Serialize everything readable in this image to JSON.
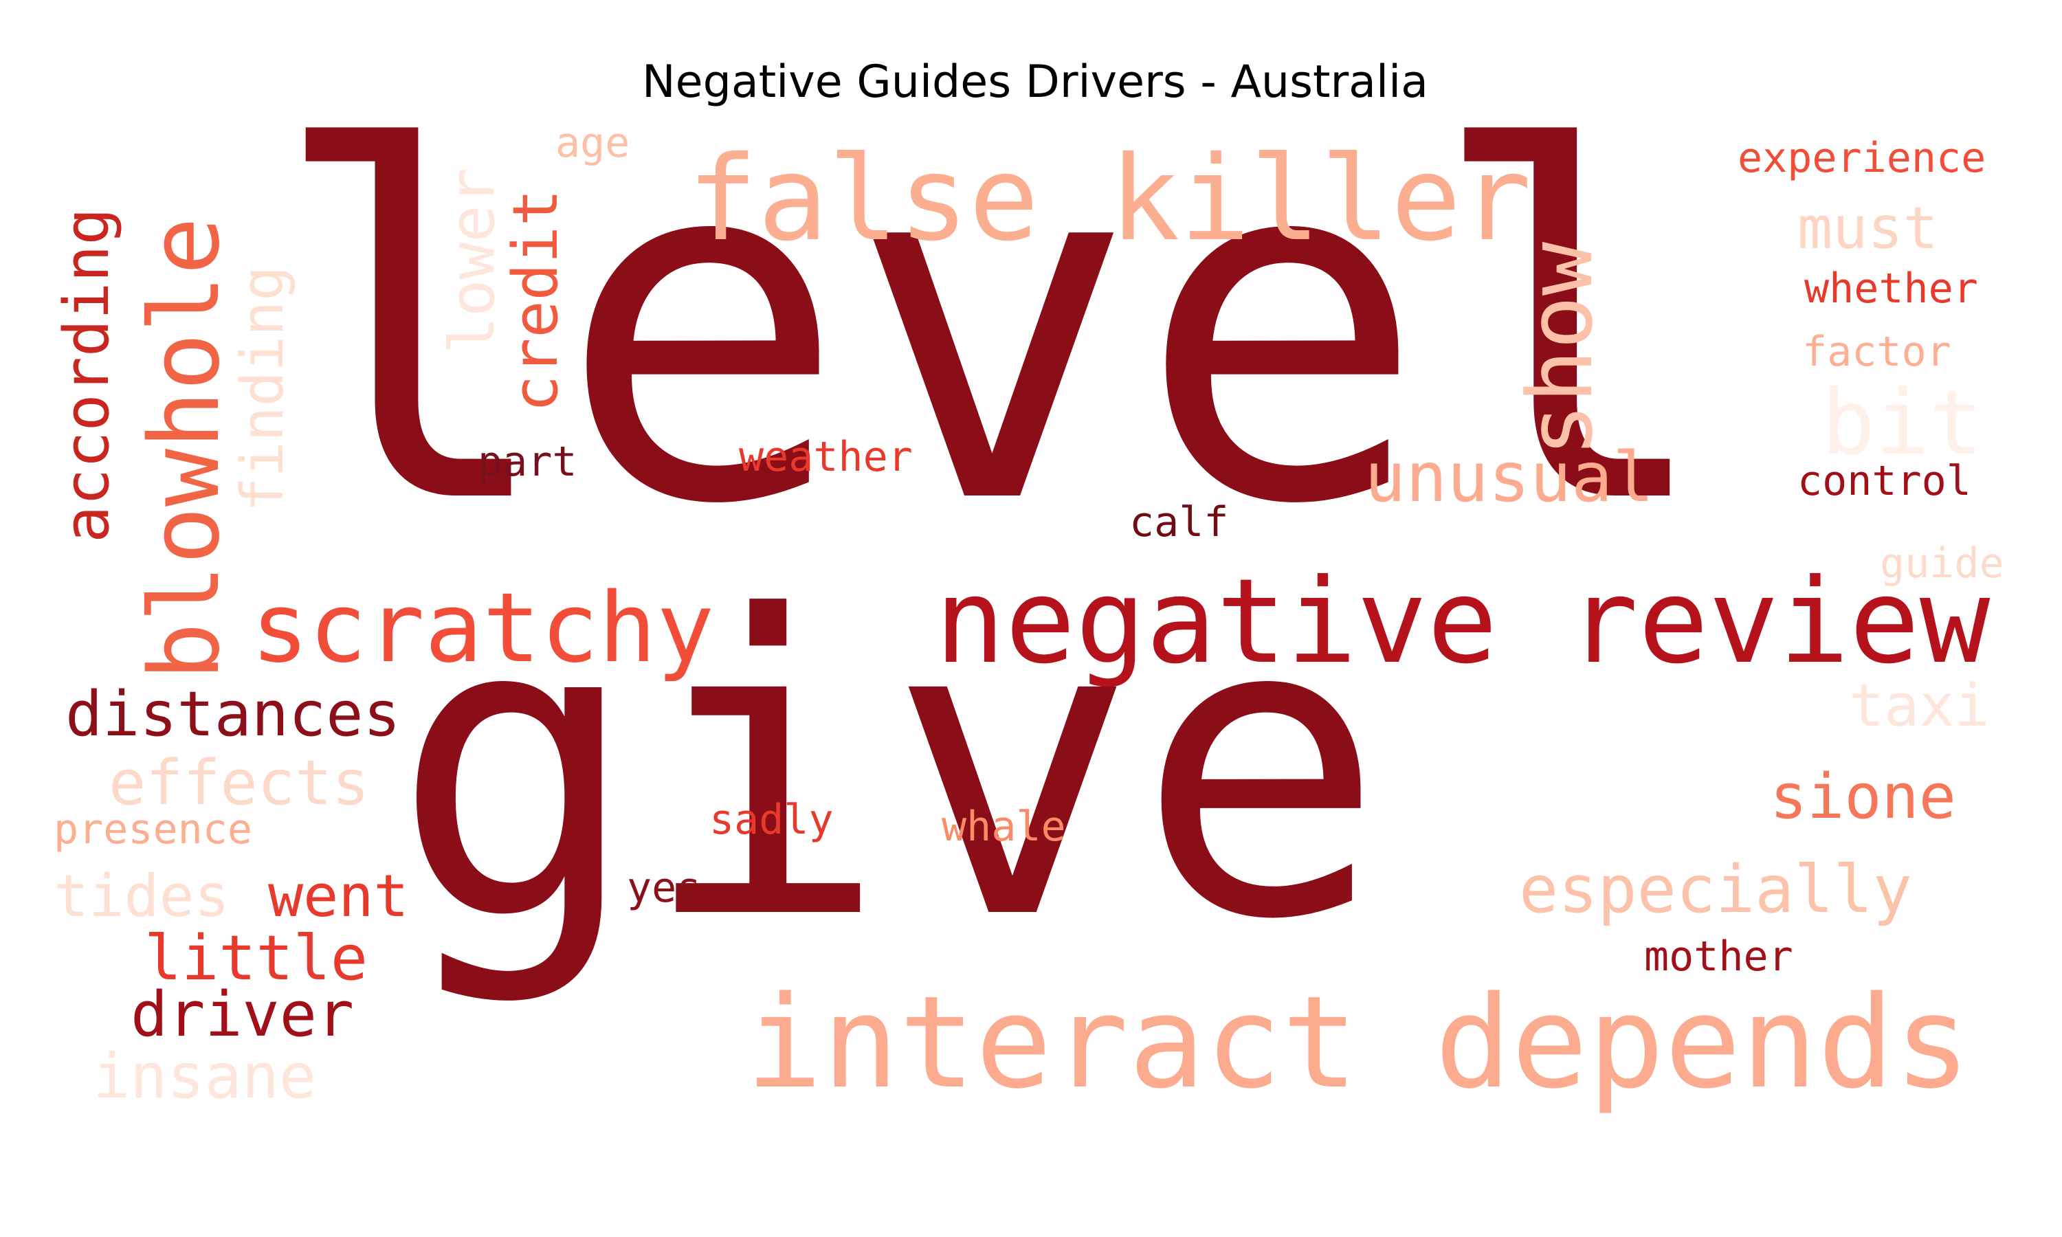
{
  "title": "Negative Guides Drivers - Australia",
  "colors": {
    "darkest": "#8b0d17",
    "dark": "#a50f15",
    "strong": "#cb181d",
    "mid": "#ef3b2c",
    "medium": "#fb6a4a",
    "light": "#fc9272",
    "lighter": "#fcae91",
    "pale": "#fcbba1",
    "palest": "#fee0d2",
    "maroon": "#67000d"
  },
  "words": [
    {
      "id": "level",
      "text": "level"
    },
    {
      "id": "give",
      "text": "give"
    },
    {
      "id": "negative-review",
      "text": "negative review"
    },
    {
      "id": "false-killer",
      "text": "false killer"
    },
    {
      "id": "interact-depends",
      "text": "interact depends"
    },
    {
      "id": "scratchy",
      "text": "scratchy"
    },
    {
      "id": "blowhole",
      "text": "blowhole"
    },
    {
      "id": "according",
      "text": "according"
    },
    {
      "id": "finding",
      "text": "finding"
    },
    {
      "id": "lower",
      "text": "lower"
    },
    {
      "id": "credit",
      "text": "credit"
    },
    {
      "id": "age",
      "text": "age"
    },
    {
      "id": "show",
      "text": "show"
    },
    {
      "id": "experience",
      "text": "experience"
    },
    {
      "id": "must",
      "text": "must"
    },
    {
      "id": "whether",
      "text": "whether"
    },
    {
      "id": "factor",
      "text": "factor"
    },
    {
      "id": "bit",
      "text": "bit"
    },
    {
      "id": "control",
      "text": "control"
    },
    {
      "id": "unusual",
      "text": "unusual"
    },
    {
      "id": "weather",
      "text": "weather"
    },
    {
      "id": "part",
      "text": "part"
    },
    {
      "id": "calf",
      "text": "calf"
    },
    {
      "id": "guide",
      "text": "guide"
    },
    {
      "id": "taxi",
      "text": "taxi"
    },
    {
      "id": "distances",
      "text": "distances"
    },
    {
      "id": "effects",
      "text": "effects"
    },
    {
      "id": "presence",
      "text": "presence"
    },
    {
      "id": "tides",
      "text": "tides"
    },
    {
      "id": "went",
      "text": "went"
    },
    {
      "id": "little",
      "text": "little"
    },
    {
      "id": "driver",
      "text": "driver"
    },
    {
      "id": "insane",
      "text": "insane"
    },
    {
      "id": "sadly",
      "text": "sadly"
    },
    {
      "id": "whale",
      "text": "whale"
    },
    {
      "id": "yes",
      "text": "yes"
    },
    {
      "id": "sione",
      "text": "sione"
    },
    {
      "id": "especially",
      "text": "especially"
    },
    {
      "id": "mother",
      "text": "mother"
    }
  ]
}
